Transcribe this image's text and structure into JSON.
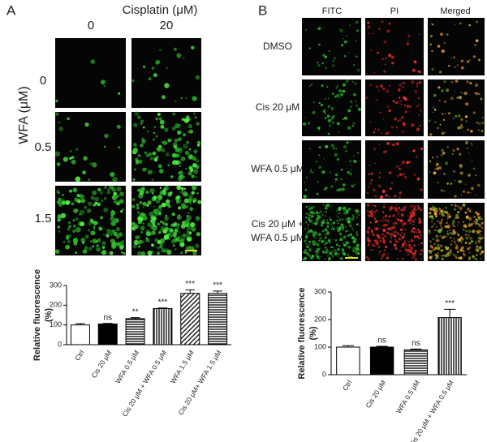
{
  "panel_a": {
    "label": "A",
    "column_title": "Cisplatin (μM)",
    "columns": [
      "0",
      "20"
    ],
    "row_title": "WFA (μM)",
    "rows": [
      "0",
      "0.5",
      "1.5"
    ]
  },
  "panel_b": {
    "label": "B",
    "columns": [
      "FITC",
      "PI",
      "Merged"
    ],
    "rows": [
      [
        "DMSO"
      ],
      [
        "Cis 20 μM"
      ],
      [
        "WFA 0.5 μM"
      ],
      [
        "Cis 20 μM +",
        "WFA 0.5 μM"
      ]
    ]
  },
  "chart_data": [
    {
      "type": "bar",
      "ylabel": [
        "Relative fluorescence",
        "(%)"
      ],
      "categories": [
        "Ctrl",
        "Cis 20 μM",
        "WFA 0.5 μM",
        "Cis 20 μM + WFA 0.5 μM",
        "WFA 1.5 μM",
        "Cis 20 μM+ WFA 1.5 μM"
      ],
      "values": [
        100,
        105,
        132,
        183,
        260,
        260
      ],
      "errors": [
        7,
        3,
        5,
        3,
        18,
        12
      ],
      "annotations": [
        null,
        "ns",
        "**",
        "***",
        "***",
        "***"
      ],
      "fills": [
        "white",
        "black",
        "hlines",
        "vlines",
        "diag",
        "hlines"
      ],
      "ylim": [
        0,
        300
      ],
      "yticks": [
        0,
        100,
        200,
        300
      ],
      "grid": false
    },
    {
      "type": "bar",
      "ylabel": [
        "Relative fluorescence",
        "(%)"
      ],
      "categories": [
        "Ctrl",
        "Cis 20 μM",
        "WFA 0.5 μM",
        "Cis 20 μM + WFA 0.5 μM"
      ],
      "values": [
        100,
        100,
        90,
        207
      ],
      "errors": [
        5,
        3,
        3,
        30
      ],
      "annotations": [
        null,
        "ns",
        "ns",
        "***"
      ],
      "fills": [
        "white",
        "black",
        "hlines",
        "vlines"
      ],
      "ylim": [
        0,
        300
      ],
      "yticks": [
        0,
        100,
        200,
        300
      ],
      "grid": false
    }
  ]
}
